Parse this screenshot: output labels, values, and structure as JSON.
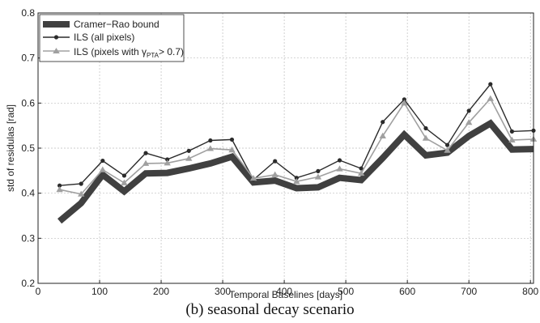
{
  "caption": "(b) seasonal decay scenario",
  "chart_data": {
    "type": "line",
    "xlabel": "Temporal Baselines [days]",
    "ylabel": "std of residulas [rad]",
    "xlim": [
      0,
      805
    ],
    "ylim": [
      0.2,
      0.8
    ],
    "xticks": [
      0,
      100,
      200,
      300,
      400,
      500,
      600,
      700,
      800
    ],
    "yticks": [
      0.2,
      0.3,
      0.4,
      0.5,
      0.6,
      0.7,
      0.8
    ],
    "grid": true,
    "legend_position": "top-left",
    "x": [
      35,
      70,
      105,
      140,
      175,
      210,
      245,
      280,
      315,
      350,
      385,
      420,
      455,
      490,
      525,
      560,
      595,
      630,
      665,
      700,
      735,
      770,
      805
    ],
    "series": [
      {
        "name": "Cramer−Rao bound",
        "color": "#404040",
        "style": "thick",
        "values": [
          0.338,
          0.378,
          0.441,
          0.404,
          0.444,
          0.445,
          0.455,
          0.466,
          0.481,
          0.424,
          0.428,
          0.411,
          0.413,
          0.434,
          0.429,
          0.478,
          0.53,
          0.484,
          0.49,
          0.527,
          0.555,
          0.497,
          0.498
        ]
      },
      {
        "name": "ILS (all pixels)",
        "color": "#2b2b2b",
        "style": "circle",
        "values": [
          0.417,
          0.421,
          0.472,
          0.439,
          0.489,
          0.475,
          0.494,
          0.517,
          0.519,
          0.43,
          0.471,
          0.434,
          0.449,
          0.473,
          0.455,
          0.558,
          0.608,
          0.544,
          0.507,
          0.583,
          0.642,
          0.537,
          0.539
        ]
      },
      {
        "name_prefix": "ILS (pixels with ",
        "name_symbol": "γ",
        "name_subscript": "PTA",
        "name_suffix": "> 0.7)",
        "color": "#a0a0a0",
        "style": "triangle",
        "values": [
          0.408,
          0.398,
          0.452,
          0.423,
          0.466,
          0.467,
          0.477,
          0.499,
          0.496,
          0.433,
          0.441,
          0.426,
          0.436,
          0.454,
          0.444,
          0.527,
          0.6,
          0.522,
          0.495,
          0.557,
          0.61,
          0.518,
          0.52
        ]
      }
    ]
  }
}
